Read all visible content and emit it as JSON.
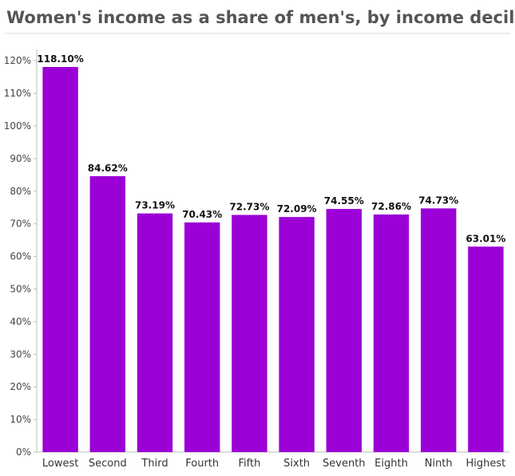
{
  "chart_data": {
    "type": "bar",
    "title": "Women's income as a share of men's, by income decile",
    "xlabel": "",
    "ylabel": "",
    "categories": [
      "Lowest",
      "Second",
      "Third",
      "Fourth",
      "Fifth",
      "Sixth",
      "Seventh",
      "Eighth",
      "Ninth",
      "Highest"
    ],
    "values": [
      118.1,
      84.62,
      73.19,
      70.43,
      72.73,
      72.09,
      74.55,
      72.86,
      74.73,
      63.01
    ],
    "data_labels": [
      "118.10%",
      "84.62%",
      "73.19%",
      "70.43%",
      "72.73%",
      "72.09%",
      "74.55%",
      "72.86%",
      "74.73%",
      "63.01%"
    ],
    "y_ticks": [
      0,
      10,
      20,
      30,
      40,
      50,
      60,
      70,
      80,
      90,
      100,
      110,
      120
    ],
    "y_tick_labels": [
      "0%",
      "10%",
      "20%",
      "30%",
      "40%",
      "50%",
      "60%",
      "70%",
      "80%",
      "90%",
      "100%",
      "110%",
      "120%"
    ],
    "ylim": [
      0,
      122.5
    ],
    "grid": false,
    "legend": "none",
    "bar_color": "#9b00d6"
  }
}
